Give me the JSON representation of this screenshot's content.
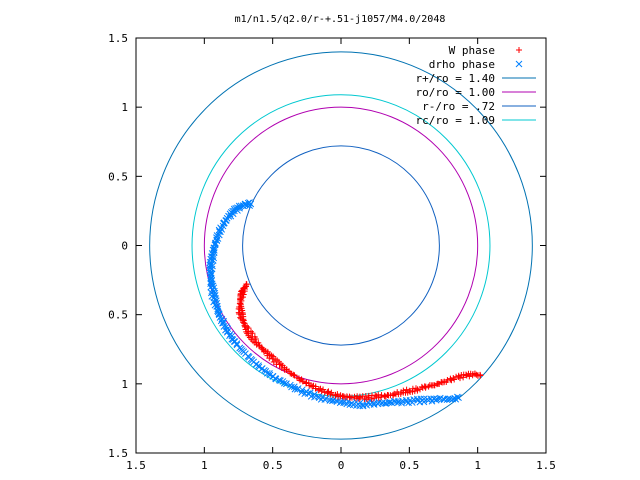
{
  "chart_data": {
    "type": "scatter",
    "title": "m1/n1.5/q2.0/r-+.51-j1057/M4.0/2048",
    "xlim": [
      -1.5,
      1.5
    ],
    "ylim": [
      -1.5,
      1.5
    ],
    "xticks": [
      -1.5,
      -1.0,
      -0.5,
      0.0,
      0.5,
      1.0,
      1.5
    ],
    "yticks": [
      -1.5,
      -1.0,
      -0.5,
      0.0,
      0.5,
      1.0,
      1.5
    ],
    "xtick_labels": [
      "1.5",
      "1",
      "0.5",
      "0",
      "0.5",
      "1",
      "1.5"
    ],
    "ytick_labels": [
      "1.5",
      "1",
      "0.5",
      "0",
      "0.5",
      "1",
      "1.5"
    ],
    "grid": false,
    "legend_position": "top-right",
    "series": [
      {
        "name": "W phase",
        "marker": "plus",
        "color": "#ff0000",
        "points": [
          [
            -0.69,
            -0.28
          ],
          [
            -0.71,
            -0.31
          ],
          [
            -0.72,
            -0.34
          ],
          [
            -0.73,
            -0.38
          ],
          [
            -0.74,
            -0.42
          ],
          [
            -0.74,
            -0.46
          ],
          [
            -0.73,
            -0.5
          ],
          [
            -0.72,
            -0.54
          ],
          [
            -0.7,
            -0.58
          ],
          [
            -0.68,
            -0.62
          ],
          [
            -0.65,
            -0.66
          ],
          [
            -0.62,
            -0.7
          ],
          [
            -0.58,
            -0.74
          ],
          [
            -0.54,
            -0.78
          ],
          [
            -0.5,
            -0.82
          ],
          [
            -0.45,
            -0.86
          ],
          [
            -0.4,
            -0.9
          ],
          [
            -0.34,
            -0.94
          ],
          [
            -0.28,
            -0.98
          ],
          [
            -0.22,
            -1.01
          ],
          [
            -0.16,
            -1.04
          ],
          [
            -0.1,
            -1.06
          ],
          [
            -0.04,
            -1.08
          ],
          [
            0.02,
            -1.09
          ],
          [
            0.08,
            -1.1
          ],
          [
            0.14,
            -1.1
          ],
          [
            0.2,
            -1.1
          ],
          [
            0.26,
            -1.09
          ],
          [
            0.32,
            -1.09
          ],
          [
            0.38,
            -1.08
          ],
          [
            0.44,
            -1.06
          ],
          [
            0.5,
            -1.05
          ],
          [
            0.56,
            -1.04
          ],
          [
            0.62,
            -1.02
          ],
          [
            0.68,
            -1.01
          ],
          [
            0.74,
            -0.99
          ],
          [
            0.8,
            -0.97
          ],
          [
            0.86,
            -0.95
          ],
          [
            0.92,
            -0.94
          ],
          [
            0.98,
            -0.93
          ],
          [
            1.02,
            -0.94
          ]
        ]
      },
      {
        "name": "drho phase",
        "marker": "cross",
        "color": "#0080ff",
        "points": [
          [
            -0.66,
            0.3
          ],
          [
            -0.7,
            0.3
          ],
          [
            -0.74,
            0.28
          ],
          [
            -0.78,
            0.25
          ],
          [
            -0.82,
            0.21
          ],
          [
            -0.86,
            0.16
          ],
          [
            -0.89,
            0.1
          ],
          [
            -0.91,
            0.04
          ],
          [
            -0.93,
            -0.02
          ],
          [
            -0.94,
            -0.08
          ],
          [
            -0.95,
            -0.14
          ],
          [
            -0.95,
            -0.2
          ],
          [
            -0.95,
            -0.26
          ],
          [
            -0.94,
            -0.32
          ],
          [
            -0.93,
            -0.38
          ],
          [
            -0.91,
            -0.44
          ],
          [
            -0.89,
            -0.5
          ],
          [
            -0.86,
            -0.56
          ],
          [
            -0.83,
            -0.62
          ],
          [
            -0.79,
            -0.68
          ],
          [
            -0.74,
            -0.74
          ],
          [
            -0.68,
            -0.8
          ],
          [
            -0.62,
            -0.86
          ],
          [
            -0.55,
            -0.91
          ],
          [
            -0.48,
            -0.96
          ],
          [
            -0.4,
            -1.0
          ],
          [
            -0.32,
            -1.04
          ],
          [
            -0.24,
            -1.07
          ],
          [
            -0.16,
            -1.1
          ],
          [
            -0.08,
            -1.12
          ],
          [
            0.0,
            -1.13
          ],
          [
            0.08,
            -1.14
          ],
          [
            0.16,
            -1.15
          ],
          [
            0.24,
            -1.14
          ],
          [
            0.32,
            -1.14
          ],
          [
            0.4,
            -1.13
          ],
          [
            0.48,
            -1.13
          ],
          [
            0.56,
            -1.12
          ],
          [
            0.64,
            -1.12
          ],
          [
            0.72,
            -1.11
          ],
          [
            0.8,
            -1.11
          ],
          [
            0.86,
            -1.1
          ]
        ]
      },
      {
        "name": "r+/ro = 1.40",
        "type": "circle",
        "radius": 1.4,
        "color": "#0072b2"
      },
      {
        "name": "ro/ro = 1.00",
        "type": "circle",
        "radius": 1.0,
        "color": "#b000b0"
      },
      {
        "name": "r-/ro = .72",
        "type": "circle",
        "radius": 0.72,
        "color": "#1060c0"
      },
      {
        "name": "rc/ro = 1.09",
        "type": "circle",
        "radius": 1.09,
        "color": "#00c8d0"
      }
    ]
  }
}
